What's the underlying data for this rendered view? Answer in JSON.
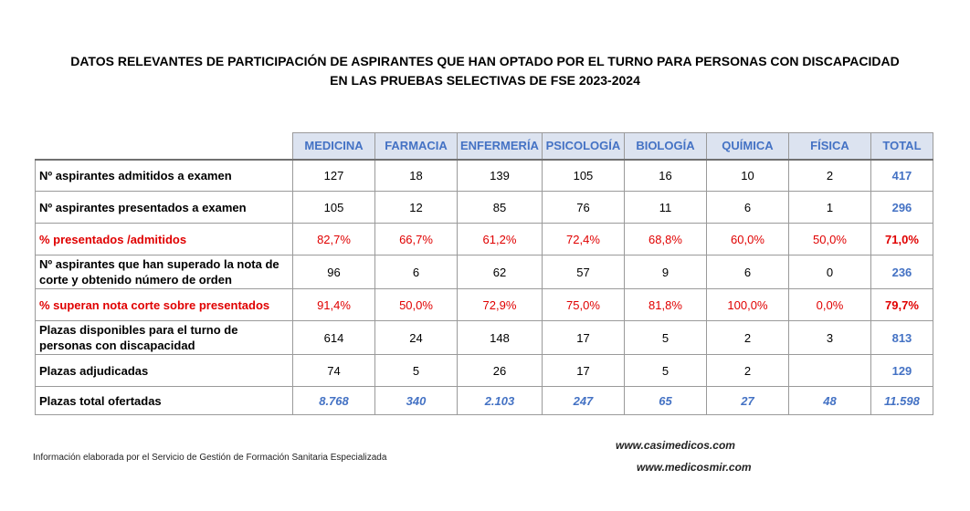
{
  "title": {
    "line1": "DATOS RELEVANTES DE PARTICIPACIÓN DE ASPIRANTES QUE HAN OPTADO POR EL TURNO PARA PERSONAS CON DISCAPACIDAD",
    "line2": "EN LAS PRUEBAS SELECTIVAS DE FSE 2023-2024"
  },
  "columns": [
    "MEDICINA",
    "FARMACIA",
    "ENFERMERÍA",
    "PSICOLOGÍA",
    "BIOLOGÍA",
    "QUÍMICA",
    "FÍSICA",
    "TOTAL"
  ],
  "rows": [
    {
      "label": "Nº aspirantes admitidos a examen",
      "values": [
        "127",
        "18",
        "139",
        "105",
        "16",
        "10",
        "2",
        "417"
      ]
    },
    {
      "label": "Nº aspirantes presentados a examen",
      "values": [
        "105",
        "12",
        "85",
        "76",
        "11",
        "6",
        "1",
        "296"
      ]
    },
    {
      "label": "% presentados /admitidos",
      "values": [
        "82,7%",
        "66,7%",
        "61,2%",
        "72,4%",
        "68,8%",
        "60,0%",
        "50,0%",
        "71,0%"
      ]
    },
    {
      "label": "Nº aspirantes que han superado la nota de corte y obtenido número de orden",
      "values": [
        "96",
        "6",
        "62",
        "57",
        "9",
        "6",
        "0",
        "236"
      ]
    },
    {
      "label": "% superan nota corte sobre presentados",
      "values": [
        "91,4%",
        "50,0%",
        "72,9%",
        "75,0%",
        "81,8%",
        "100,0%",
        "0,0%",
        "79,7%"
      ]
    },
    {
      "label": "Plazas disponibles para el turno de personas con discapacidad",
      "values": [
        "614",
        "24",
        "148",
        "17",
        "5",
        "2",
        "3",
        "813"
      ]
    },
    {
      "label": "Plazas adjudicadas",
      "values": [
        "74",
        "5",
        "26",
        "17",
        "5",
        "2",
        "",
        "129"
      ]
    },
    {
      "label": "Plazas total ofertadas",
      "values": [
        "8.768",
        "340",
        "2.103",
        "247",
        "65",
        "27",
        "48",
        "11.598"
      ]
    }
  ],
  "footer": {
    "source": "Información elaborada por el Servicio de Gestión de Formación Sanitaria Especializada",
    "web1": "www.casimedicos.com",
    "web2": "www.medicosmir.com"
  },
  "colors": {
    "header_blue": "#4472c4",
    "percent_red": "#e00000",
    "header_bg": "#dce3f0"
  }
}
